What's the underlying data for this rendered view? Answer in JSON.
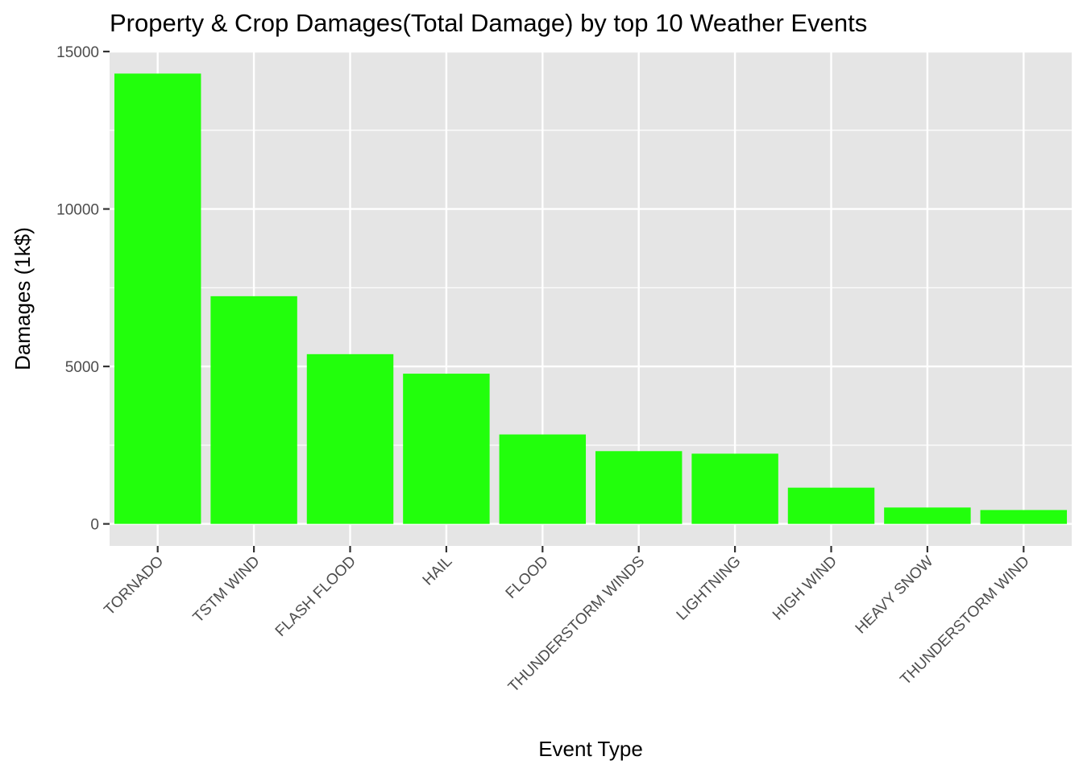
{
  "chart_data": {
    "type": "bar",
    "title": "Property & Crop Damages(Total Damage) by top 10 Weather Events",
    "xlabel": "Event Type",
    "ylabel": "Damages (1k$)",
    "categories": [
      "TORNADO",
      "TSTM WIND",
      "FLASH FLOOD",
      "HAIL",
      "FLOOD",
      "THUNDERSTORM WINDS",
      "LIGHTNING",
      "HIGH WIND",
      "HEAVY SNOW",
      "THUNDERSTORM WIND"
    ],
    "values": [
      14300,
      7230,
      5390,
      4770,
      2840,
      2310,
      2230,
      1150,
      520,
      440
    ],
    "ylim": [
      -700,
      15000
    ],
    "yticks": [
      0,
      5000,
      10000,
      15000
    ],
    "ytick_labels": [
      "0",
      "5000",
      "10000",
      "15000"
    ],
    "grid": true,
    "colors": {
      "bar": "#22ff0c",
      "panel": "#e5e5e5",
      "grid": "#ffffff",
      "tick": "#333333"
    }
  }
}
